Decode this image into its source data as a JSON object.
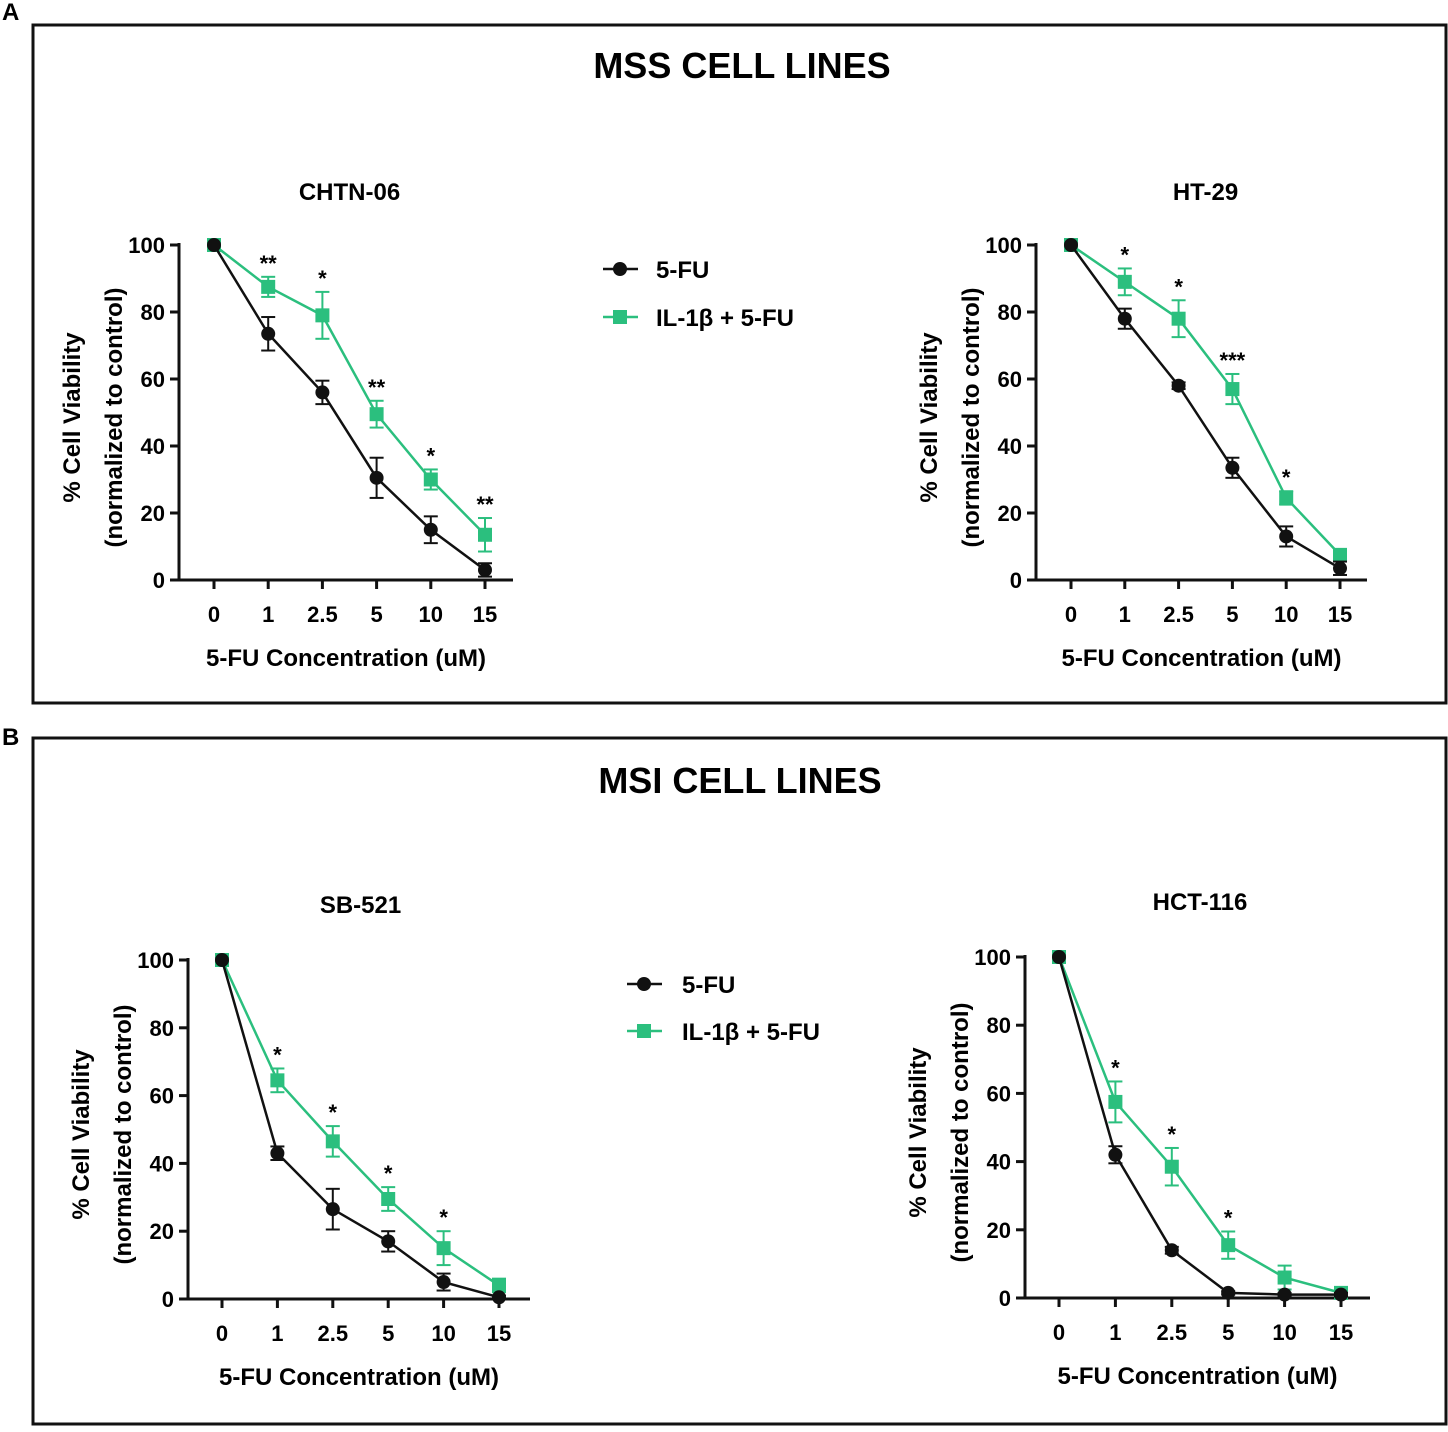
{
  "panels": [
    {
      "letter": "A",
      "title": "MSS CELL LINES",
      "legend": {
        "series1": "5-FU",
        "series2": "IL-1β + 5-FU"
      }
    },
    {
      "letter": "B",
      "title": "MSI CELL LINES",
      "legend": {
        "series1": "5-FU",
        "series2": "IL-1β + 5-FU"
      }
    }
  ],
  "colors": {
    "series1": "#111111",
    "series2": "#2bbf7e",
    "axis": "#111111"
  },
  "chart_data": [
    {
      "type": "line",
      "title": "CHTN-06",
      "xlabel": "5-FU Concentration (uM)",
      "ylabel": "% Cell Viability",
      "ylabel2": "(normalized to control)",
      "categories": [
        "0",
        "1",
        "2.5",
        "5",
        "10",
        "15"
      ],
      "yticks": [
        "0",
        "20",
        "40",
        "60",
        "80",
        "100"
      ],
      "ylim": [
        0,
        100
      ],
      "series": [
        {
          "name": "5-FU",
          "values": [
            100,
            73.5,
            56,
            30.5,
            15,
            3
          ],
          "errors": [
            0,
            5,
            3.5,
            6,
            4,
            2
          ]
        },
        {
          "name": "IL-1β + 5-FU",
          "values": [
            100,
            87.5,
            79,
            49.5,
            30,
            13.5
          ],
          "errors": [
            0,
            3,
            7,
            4,
            3,
            5
          ]
        }
      ],
      "significance": [
        "",
        "**",
        "*",
        "**",
        "*",
        "**"
      ]
    },
    {
      "type": "line",
      "title": "HT-29",
      "xlabel": "5-FU Concentration (uM)",
      "ylabel": "% Cell Viability",
      "ylabel2": "(normalized to control)",
      "categories": [
        "0",
        "1",
        "2.5",
        "5",
        "10",
        "15"
      ],
      "yticks": [
        "0",
        "20",
        "40",
        "60",
        "80",
        "100"
      ],
      "ylim": [
        0,
        100
      ],
      "series": [
        {
          "name": "5-FU",
          "values": [
            100,
            78,
            58,
            33.5,
            13,
            3.5
          ],
          "errors": [
            0,
            3,
            1,
            3,
            3,
            2
          ]
        },
        {
          "name": "IL-1β + 5-FU",
          "values": [
            100,
            89,
            78,
            57,
            24.5,
            7.5
          ],
          "errors": [
            0,
            4,
            5.5,
            4.5,
            2,
            1.5
          ]
        }
      ],
      "significance": [
        "",
        "*",
        "*",
        "***",
        "*",
        ""
      ]
    },
    {
      "type": "line",
      "title": "SB-521",
      "xlabel": "5-FU Concentration (uM)",
      "ylabel": "% Cell Viability",
      "ylabel2": "(normalized to control)",
      "categories": [
        "0",
        "1",
        "2.5",
        "5",
        "10",
        "15"
      ],
      "yticks": [
        "0",
        "20",
        "40",
        "60",
        "80",
        "100"
      ],
      "ylim": [
        0,
        100
      ],
      "series": [
        {
          "name": "5-FU",
          "values": [
            100,
            43,
            26.5,
            17,
            5,
            0.5
          ],
          "errors": [
            0,
            2,
            6,
            3,
            2.5,
            0.5
          ]
        },
        {
          "name": "IL-1β + 5-FU",
          "values": [
            100,
            64.5,
            46.5,
            29.5,
            15,
            4
          ],
          "errors": [
            0,
            3.5,
            4.5,
            3.5,
            5,
            2
          ]
        }
      ],
      "significance": [
        "",
        "*",
        "*",
        "*",
        "*",
        ""
      ]
    },
    {
      "type": "line",
      "title": "HCT-116",
      "xlabel": "5-FU Concentration (uM)",
      "ylabel": "% Cell Viability",
      "ylabel2": "(normalized to control)",
      "categories": [
        "0",
        "1",
        "2.5",
        "5",
        "10",
        "15"
      ],
      "yticks": [
        "0",
        "20",
        "40",
        "60",
        "80",
        "100"
      ],
      "ylim": [
        0,
        100
      ],
      "series": [
        {
          "name": "5-FU",
          "values": [
            100,
            42,
            14,
            1.5,
            1,
            1
          ],
          "errors": [
            0,
            2.5,
            1,
            0.5,
            0.5,
            0.5
          ]
        },
        {
          "name": "IL-1β + 5-FU",
          "values": [
            100,
            57.5,
            38.5,
            15.5,
            6,
            1.5
          ],
          "errors": [
            0,
            6,
            5.5,
            4,
            3.5,
            1
          ]
        }
      ],
      "significance": [
        "",
        "*",
        "*",
        "*",
        "",
        ""
      ]
    }
  ]
}
